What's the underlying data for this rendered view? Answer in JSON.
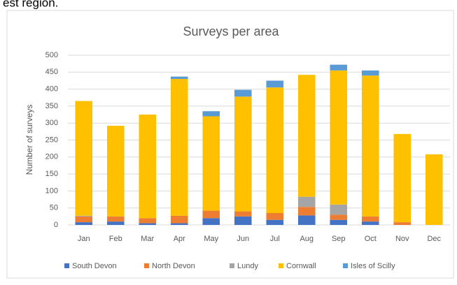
{
  "chart_data": {
    "type": "stacked_bar",
    "caption": "est region.",
    "title": "Surveys per area",
    "y_label": "Number of surveys",
    "categories": [
      "Jan",
      "Feb",
      "Mar",
      "Apr",
      "May",
      "Jun",
      "Jul",
      "Aug",
      "Sep",
      "Oct",
      "Nov",
      "Dec"
    ],
    "series": [
      {
        "name": "South Devon",
        "color": "#4472c4",
        "values": [
          8,
          10,
          5,
          5,
          20,
          25,
          15,
          28,
          15,
          10,
          0,
          0
        ]
      },
      {
        "name": "North Devon",
        "color": "#ed7d31",
        "values": [
          17,
          15,
          15,
          22,
          22,
          15,
          20,
          25,
          15,
          15,
          8,
          0
        ]
      },
      {
        "name": "Lundy",
        "color": "#a5a5a5",
        "values": [
          2,
          0,
          0,
          0,
          0,
          0,
          0,
          30,
          30,
          0,
          0,
          0
        ]
      },
      {
        "name": "Cornwall",
        "color": "#ffc000",
        "values": [
          338,
          267,
          305,
          403,
          278,
          338,
          370,
          359,
          395,
          415,
          260,
          208
        ]
      },
      {
        "name": "Isles of Scilly",
        "color": "#5b9bd5",
        "values": [
          0,
          0,
          0,
          7,
          15,
          20,
          20,
          0,
          17,
          15,
          0,
          0
        ]
      }
    ],
    "ylim": [
      0,
      500
    ],
    "yticks": [
      0,
      50,
      100,
      150,
      200,
      250,
      300,
      350,
      400,
      450,
      500
    ],
    "grid": true,
    "legend": "bottom"
  }
}
